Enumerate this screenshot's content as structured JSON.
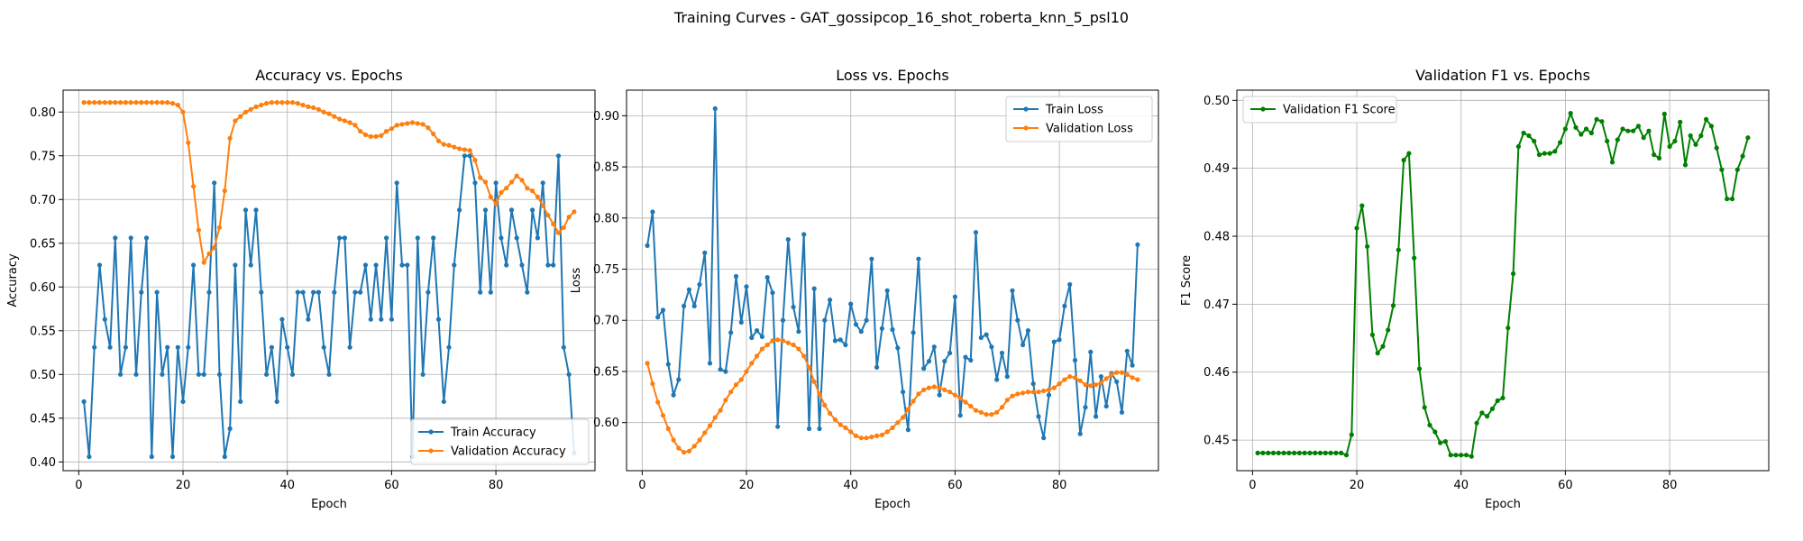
{
  "suptitle": "Training Curves - GAT_gossipcop_16_shot_roberta_knn_5_psl10",
  "chart_data": [
    {
      "type": "line",
      "title": "Accuracy vs. Epochs",
      "xlabel": "Epoch",
      "ylabel": "Accuracy",
      "xlim": [
        -3,
        99
      ],
      "ylim": [
        0.39,
        0.825
      ],
      "xticks": [
        0,
        20,
        40,
        60,
        80
      ],
      "yticks": [
        0.4,
        0.45,
        0.5,
        0.55,
        0.6,
        0.65,
        0.7,
        0.75,
        0.8
      ],
      "ytick_labels": [
        "0.40",
        "0.45",
        "0.50",
        "0.55",
        "0.60",
        "0.65",
        "0.70",
        "0.75",
        "0.80"
      ],
      "grid": true,
      "legend": "lower right",
      "series": [
        {
          "name": "Train Accuracy",
          "color": "#1f77b4",
          "y": [
            0.469,
            0.406,
            0.531,
            0.625,
            0.563,
            0.531,
            0.656,
            0.5,
            0.531,
            0.656,
            0.5,
            0.594,
            0.656,
            0.406,
            0.594,
            0.5,
            0.531,
            0.406,
            0.531,
            0.469,
            0.531,
            0.625,
            0.5,
            0.5,
            0.594,
            0.719,
            0.5,
            0.406,
            0.438,
            0.625,
            0.469,
            0.688,
            0.625,
            0.688,
            0.594,
            0.5,
            0.531,
            0.469,
            0.563,
            0.531,
            0.5,
            0.594,
            0.594,
            0.563,
            0.594,
            0.594,
            0.531,
            0.5,
            0.594,
            0.656,
            0.656,
            0.531,
            0.594,
            0.594,
            0.625,
            0.563,
            0.625,
            0.563,
            0.656,
            0.563,
            0.719,
            0.625,
            0.625,
            0.406,
            0.656,
            0.5,
            0.594,
            0.656,
            0.563,
            0.469,
            0.531,
            0.625,
            0.688,
            0.75,
            0.75,
            0.719,
            0.594,
            0.688,
            0.594,
            0.719,
            0.656,
            0.625,
            0.688,
            0.656,
            0.625,
            0.594,
            0.688,
            0.656,
            0.719,
            0.625,
            0.625,
            0.75,
            0.531,
            0.5,
            0.41
          ]
        },
        {
          "name": "Validation Accuracy",
          "color": "#ff7f0e",
          "y": [
            0.811,
            0.811,
            0.811,
            0.811,
            0.811,
            0.811,
            0.811,
            0.811,
            0.811,
            0.811,
            0.811,
            0.811,
            0.811,
            0.811,
            0.811,
            0.811,
            0.811,
            0.81,
            0.808,
            0.8,
            0.765,
            0.715,
            0.665,
            0.628,
            0.638,
            0.645,
            0.668,
            0.71,
            0.77,
            0.79,
            0.795,
            0.8,
            0.803,
            0.806,
            0.808,
            0.81,
            0.811,
            0.811,
            0.811,
            0.811,
            0.811,
            0.81,
            0.808,
            0.806,
            0.805,
            0.803,
            0.8,
            0.798,
            0.795,
            0.792,
            0.79,
            0.788,
            0.785,
            0.778,
            0.774,
            0.772,
            0.772,
            0.773,
            0.778,
            0.781,
            0.785,
            0.786,
            0.787,
            0.788,
            0.787,
            0.786,
            0.782,
            0.775,
            0.767,
            0.763,
            0.762,
            0.76,
            0.758,
            0.757,
            0.756,
            0.745,
            0.725,
            0.72,
            0.703,
            0.695,
            0.708,
            0.713,
            0.72,
            0.727,
            0.722,
            0.713,
            0.71,
            0.703,
            0.693,
            0.682,
            0.672,
            0.662,
            0.668,
            0.68,
            0.686
          ]
        }
      ]
    },
    {
      "type": "line",
      "title": "Loss vs. Epochs",
      "xlabel": "Epoch",
      "ylabel": "Loss",
      "xlim": [
        -3,
        99
      ],
      "ylim": [
        0.553,
        0.925
      ],
      "xticks": [
        0,
        20,
        40,
        60,
        80
      ],
      "yticks": [
        0.6,
        0.65,
        0.7,
        0.75,
        0.8,
        0.85,
        0.9
      ],
      "ytick_labels": [
        "0.60",
        "0.65",
        "0.70",
        "0.75",
        "0.80",
        "0.85",
        "0.90"
      ],
      "grid": true,
      "legend": "upper right",
      "series": [
        {
          "name": "Train Loss",
          "color": "#1f77b4",
          "y": [
            0.773,
            0.806,
            0.703,
            0.71,
            0.657,
            0.627,
            0.642,
            0.714,
            0.73,
            0.714,
            0.735,
            0.766,
            0.658,
            0.907,
            0.652,
            0.65,
            0.688,
            0.743,
            0.698,
            0.733,
            0.683,
            0.69,
            0.684,
            0.742,
            0.727,
            0.596,
            0.7,
            0.779,
            0.713,
            0.689,
            0.784,
            0.594,
            0.731,
            0.594,
            0.7,
            0.72,
            0.68,
            0.681,
            0.676,
            0.716,
            0.696,
            0.689,
            0.7,
            0.76,
            0.654,
            0.692,
            0.729,
            0.691,
            0.673,
            0.63,
            0.593,
            0.688,
            0.76,
            0.653,
            0.66,
            0.674,
            0.627,
            0.66,
            0.668,
            0.723,
            0.607,
            0.664,
            0.661,
            0.786,
            0.683,
            0.686,
            0.674,
            0.642,
            0.668,
            0.645,
            0.729,
            0.7,
            0.676,
            0.69,
            0.638,
            0.606,
            0.585,
            0.627,
            0.679,
            0.681,
            0.714,
            0.735,
            0.661,
            0.589,
            0.615,
            0.669,
            0.606,
            0.645,
            0.616,
            0.648,
            0.64,
            0.61,
            0.67,
            0.656,
            0.774
          ]
        },
        {
          "name": "Validation Loss",
          "color": "#ff7f0e",
          "y": [
            0.658,
            0.638,
            0.62,
            0.607,
            0.594,
            0.583,
            0.575,
            0.571,
            0.572,
            0.577,
            0.583,
            0.59,
            0.597,
            0.605,
            0.612,
            0.622,
            0.63,
            0.637,
            0.642,
            0.65,
            0.658,
            0.665,
            0.672,
            0.676,
            0.68,
            0.681,
            0.68,
            0.678,
            0.676,
            0.672,
            0.665,
            0.654,
            0.64,
            0.628,
            0.617,
            0.609,
            0.603,
            0.598,
            0.595,
            0.591,
            0.587,
            0.585,
            0.585,
            0.586,
            0.587,
            0.588,
            0.591,
            0.595,
            0.6,
            0.605,
            0.613,
            0.621,
            0.628,
            0.632,
            0.634,
            0.635,
            0.634,
            0.632,
            0.63,
            0.627,
            0.624,
            0.62,
            0.616,
            0.612,
            0.61,
            0.608,
            0.608,
            0.61,
            0.615,
            0.622,
            0.626,
            0.628,
            0.629,
            0.63,
            0.63,
            0.63,
            0.631,
            0.632,
            0.634,
            0.638,
            0.642,
            0.645,
            0.644,
            0.641,
            0.637,
            0.636,
            0.637,
            0.639,
            0.643,
            0.647,
            0.649,
            0.649,
            0.647,
            0.644,
            0.642
          ]
        }
      ]
    },
    {
      "type": "line",
      "title": "Validation F1 vs. Epochs",
      "xlabel": "Epoch",
      "ylabel": "F1 Score",
      "xlim": [
        -3,
        99
      ],
      "ylim": [
        0.4455,
        0.5015
      ],
      "xticks": [
        0,
        20,
        40,
        60,
        80
      ],
      "yticks": [
        0.45,
        0.46,
        0.47,
        0.48,
        0.49,
        0.5
      ],
      "ytick_labels": [
        "0.45",
        "0.46",
        "0.47",
        "0.48",
        "0.49",
        "0.50"
      ],
      "grid": true,
      "legend": "upper left",
      "series": [
        {
          "name": "Validation F1 Score",
          "color": "#008000",
          "y": [
            0.4481,
            0.4481,
            0.4481,
            0.4481,
            0.4481,
            0.4481,
            0.4481,
            0.4481,
            0.4481,
            0.4481,
            0.4481,
            0.4481,
            0.4481,
            0.4481,
            0.4481,
            0.4481,
            0.4481,
            0.4478,
            0.4508,
            0.4812,
            0.4845,
            0.4785,
            0.4655,
            0.4628,
            0.4638,
            0.4662,
            0.4698,
            0.478,
            0.4912,
            0.4922,
            0.4768,
            0.4605,
            0.4548,
            0.4522,
            0.4512,
            0.4496,
            0.4498,
            0.4478,
            0.4478,
            0.4478,
            0.4478,
            0.4476,
            0.4525,
            0.454,
            0.4535,
            0.4546,
            0.4558,
            0.4562,
            0.4665,
            0.4745,
            0.4932,
            0.4952,
            0.4948,
            0.494,
            0.492,
            0.4922,
            0.4922,
            0.4925,
            0.4938,
            0.4958,
            0.4981,
            0.496,
            0.495,
            0.4958,
            0.4952,
            0.4972,
            0.4969,
            0.494,
            0.4909,
            0.4942,
            0.4958,
            0.4955,
            0.4955,
            0.4962,
            0.4945,
            0.4955,
            0.492,
            0.4915,
            0.498,
            0.4932,
            0.494,
            0.4968,
            0.4905,
            0.4948,
            0.4935,
            0.4948,
            0.4972,
            0.4962,
            0.493,
            0.4898,
            0.4855,
            0.4855,
            0.4898,
            0.4918,
            0.4945
          ]
        }
      ]
    }
  ]
}
